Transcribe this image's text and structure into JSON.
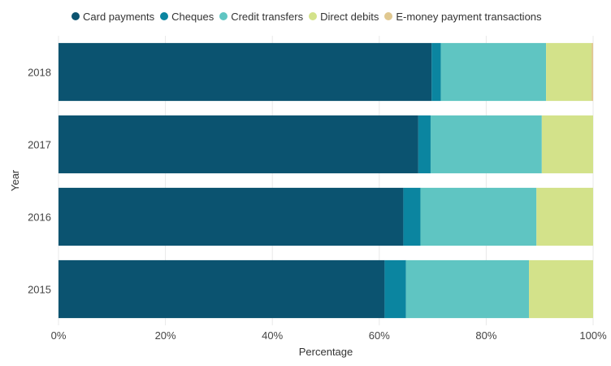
{
  "chart_data": {
    "type": "bar",
    "orientation": "horizontal",
    "stacked": true,
    "categories": [
      "2018",
      "2017",
      "2016",
      "2015"
    ],
    "series": [
      {
        "name": "Card payments",
        "color": "#0b5370",
        "values": [
          69.8,
          67.3,
          64.5,
          61.0
        ]
      },
      {
        "name": "Cheques",
        "color": "#0b85a0",
        "values": [
          1.7,
          2.3,
          3.2,
          4.0
        ]
      },
      {
        "name": "Credit transfers",
        "color": "#5fc5c2",
        "values": [
          19.7,
          20.8,
          21.7,
          23.0
        ]
      },
      {
        "name": "Direct debits",
        "color": "#d3e28a",
        "values": [
          8.5,
          9.6,
          10.6,
          12.0
        ]
      },
      {
        "name": "E-money payment transactions",
        "color": "#e0c890",
        "values": [
          0.3,
          0.0,
          0.0,
          0.0
        ]
      }
    ],
    "xlabel": "Percentage",
    "ylabel": "Year",
    "xlim": [
      0,
      100
    ],
    "x_ticks": [
      "0%",
      "20%",
      "40%",
      "60%",
      "80%",
      "100%"
    ],
    "x_tick_values": [
      0,
      20,
      40,
      60,
      80,
      100
    ],
    "grid": true,
    "legend_position": "top-left"
  }
}
